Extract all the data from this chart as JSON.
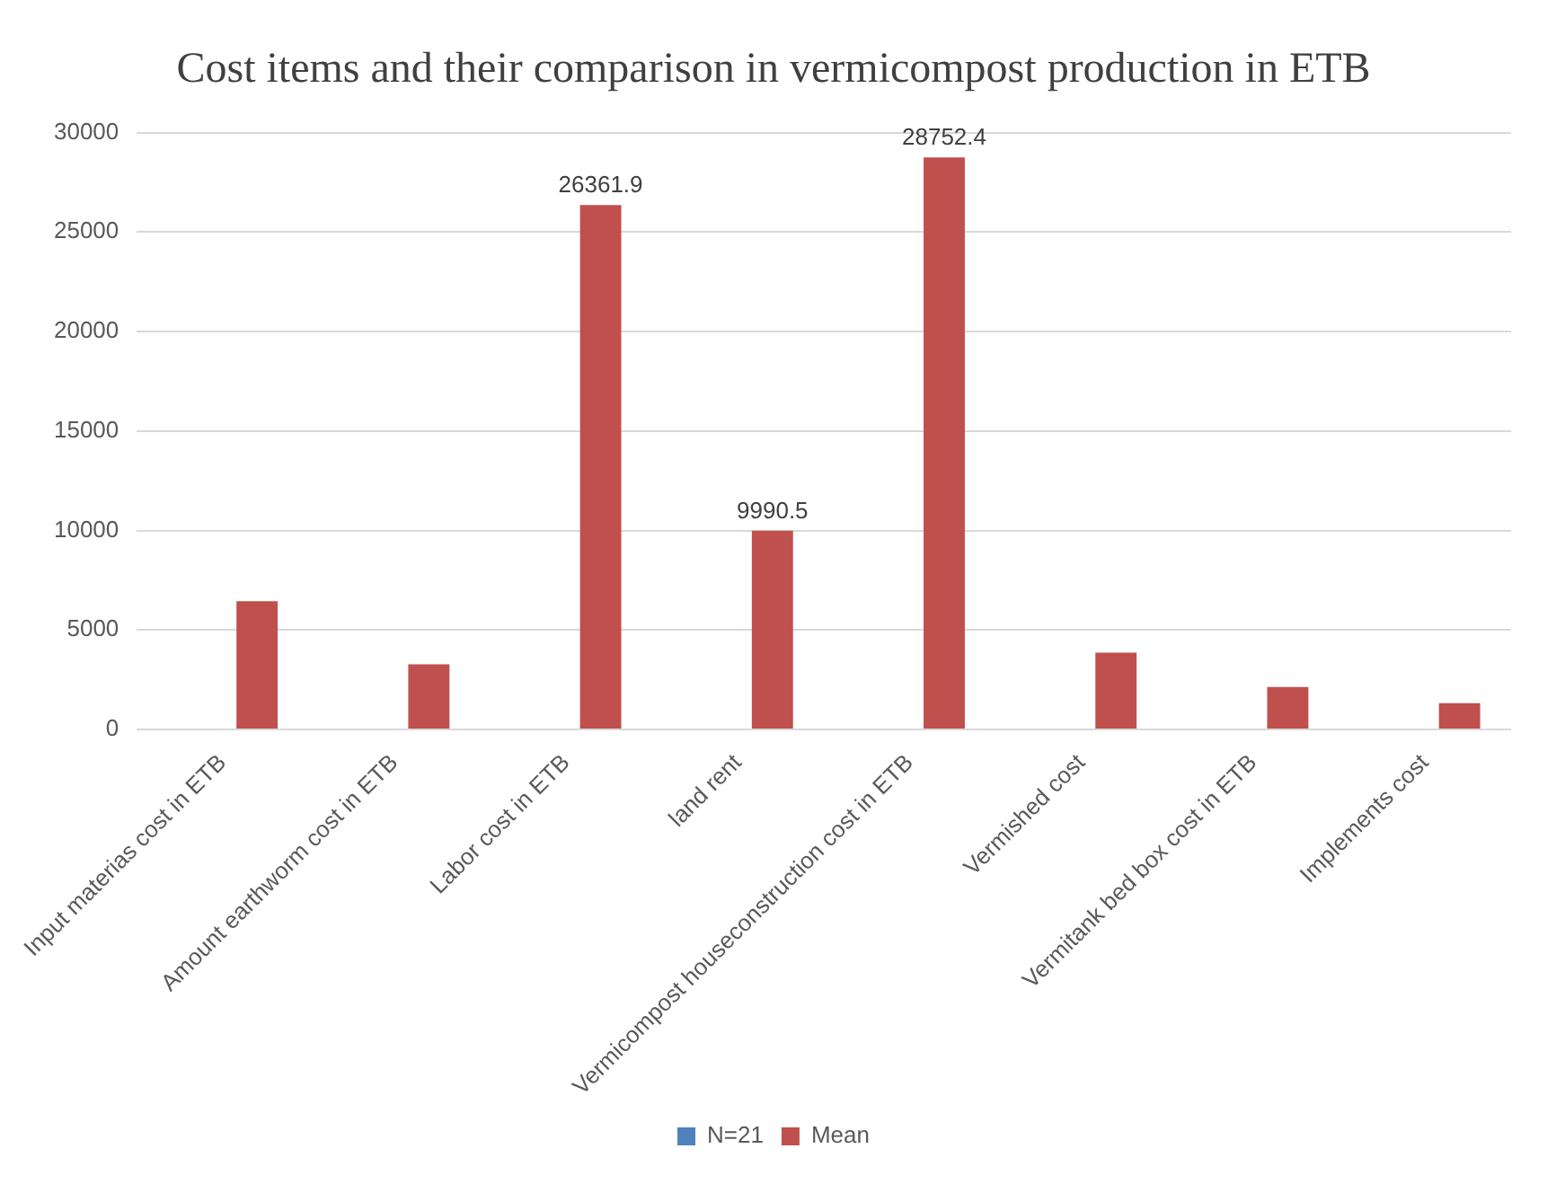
{
  "chart_data": {
    "type": "bar",
    "title": "Cost items and their comparison in vermicompost production in ETB",
    "categories": [
      "Input materias cost in ETB",
      "Amount earthworm cost in ETB",
      "Labor cost in ETB",
      "land rent",
      "Vermicompost houseconstruction cost in ETB",
      "Vermished cost",
      "Vermitank bed box cost in ETB",
      "Implements cost"
    ],
    "series": [
      {
        "name": "N=21",
        "color": "#4f81bd",
        "values": [
          null,
          null,
          null,
          null,
          null,
          null,
          null,
          null
        ]
      },
      {
        "name": "Mean",
        "color": "#c0504d",
        "values": [
          6450,
          3280,
          26361.9,
          9990.5,
          28752.4,
          3860,
          2130,
          1320
        ],
        "value_labels": [
          null,
          null,
          "26361.9",
          "9990.5",
          "28752.4",
          null,
          null,
          null
        ]
      }
    ],
    "ylim": [
      0,
      30000
    ],
    "yticks": [
      0,
      5000,
      10000,
      15000,
      20000,
      25000,
      30000
    ],
    "grid": "y",
    "legend": "bottom"
  }
}
